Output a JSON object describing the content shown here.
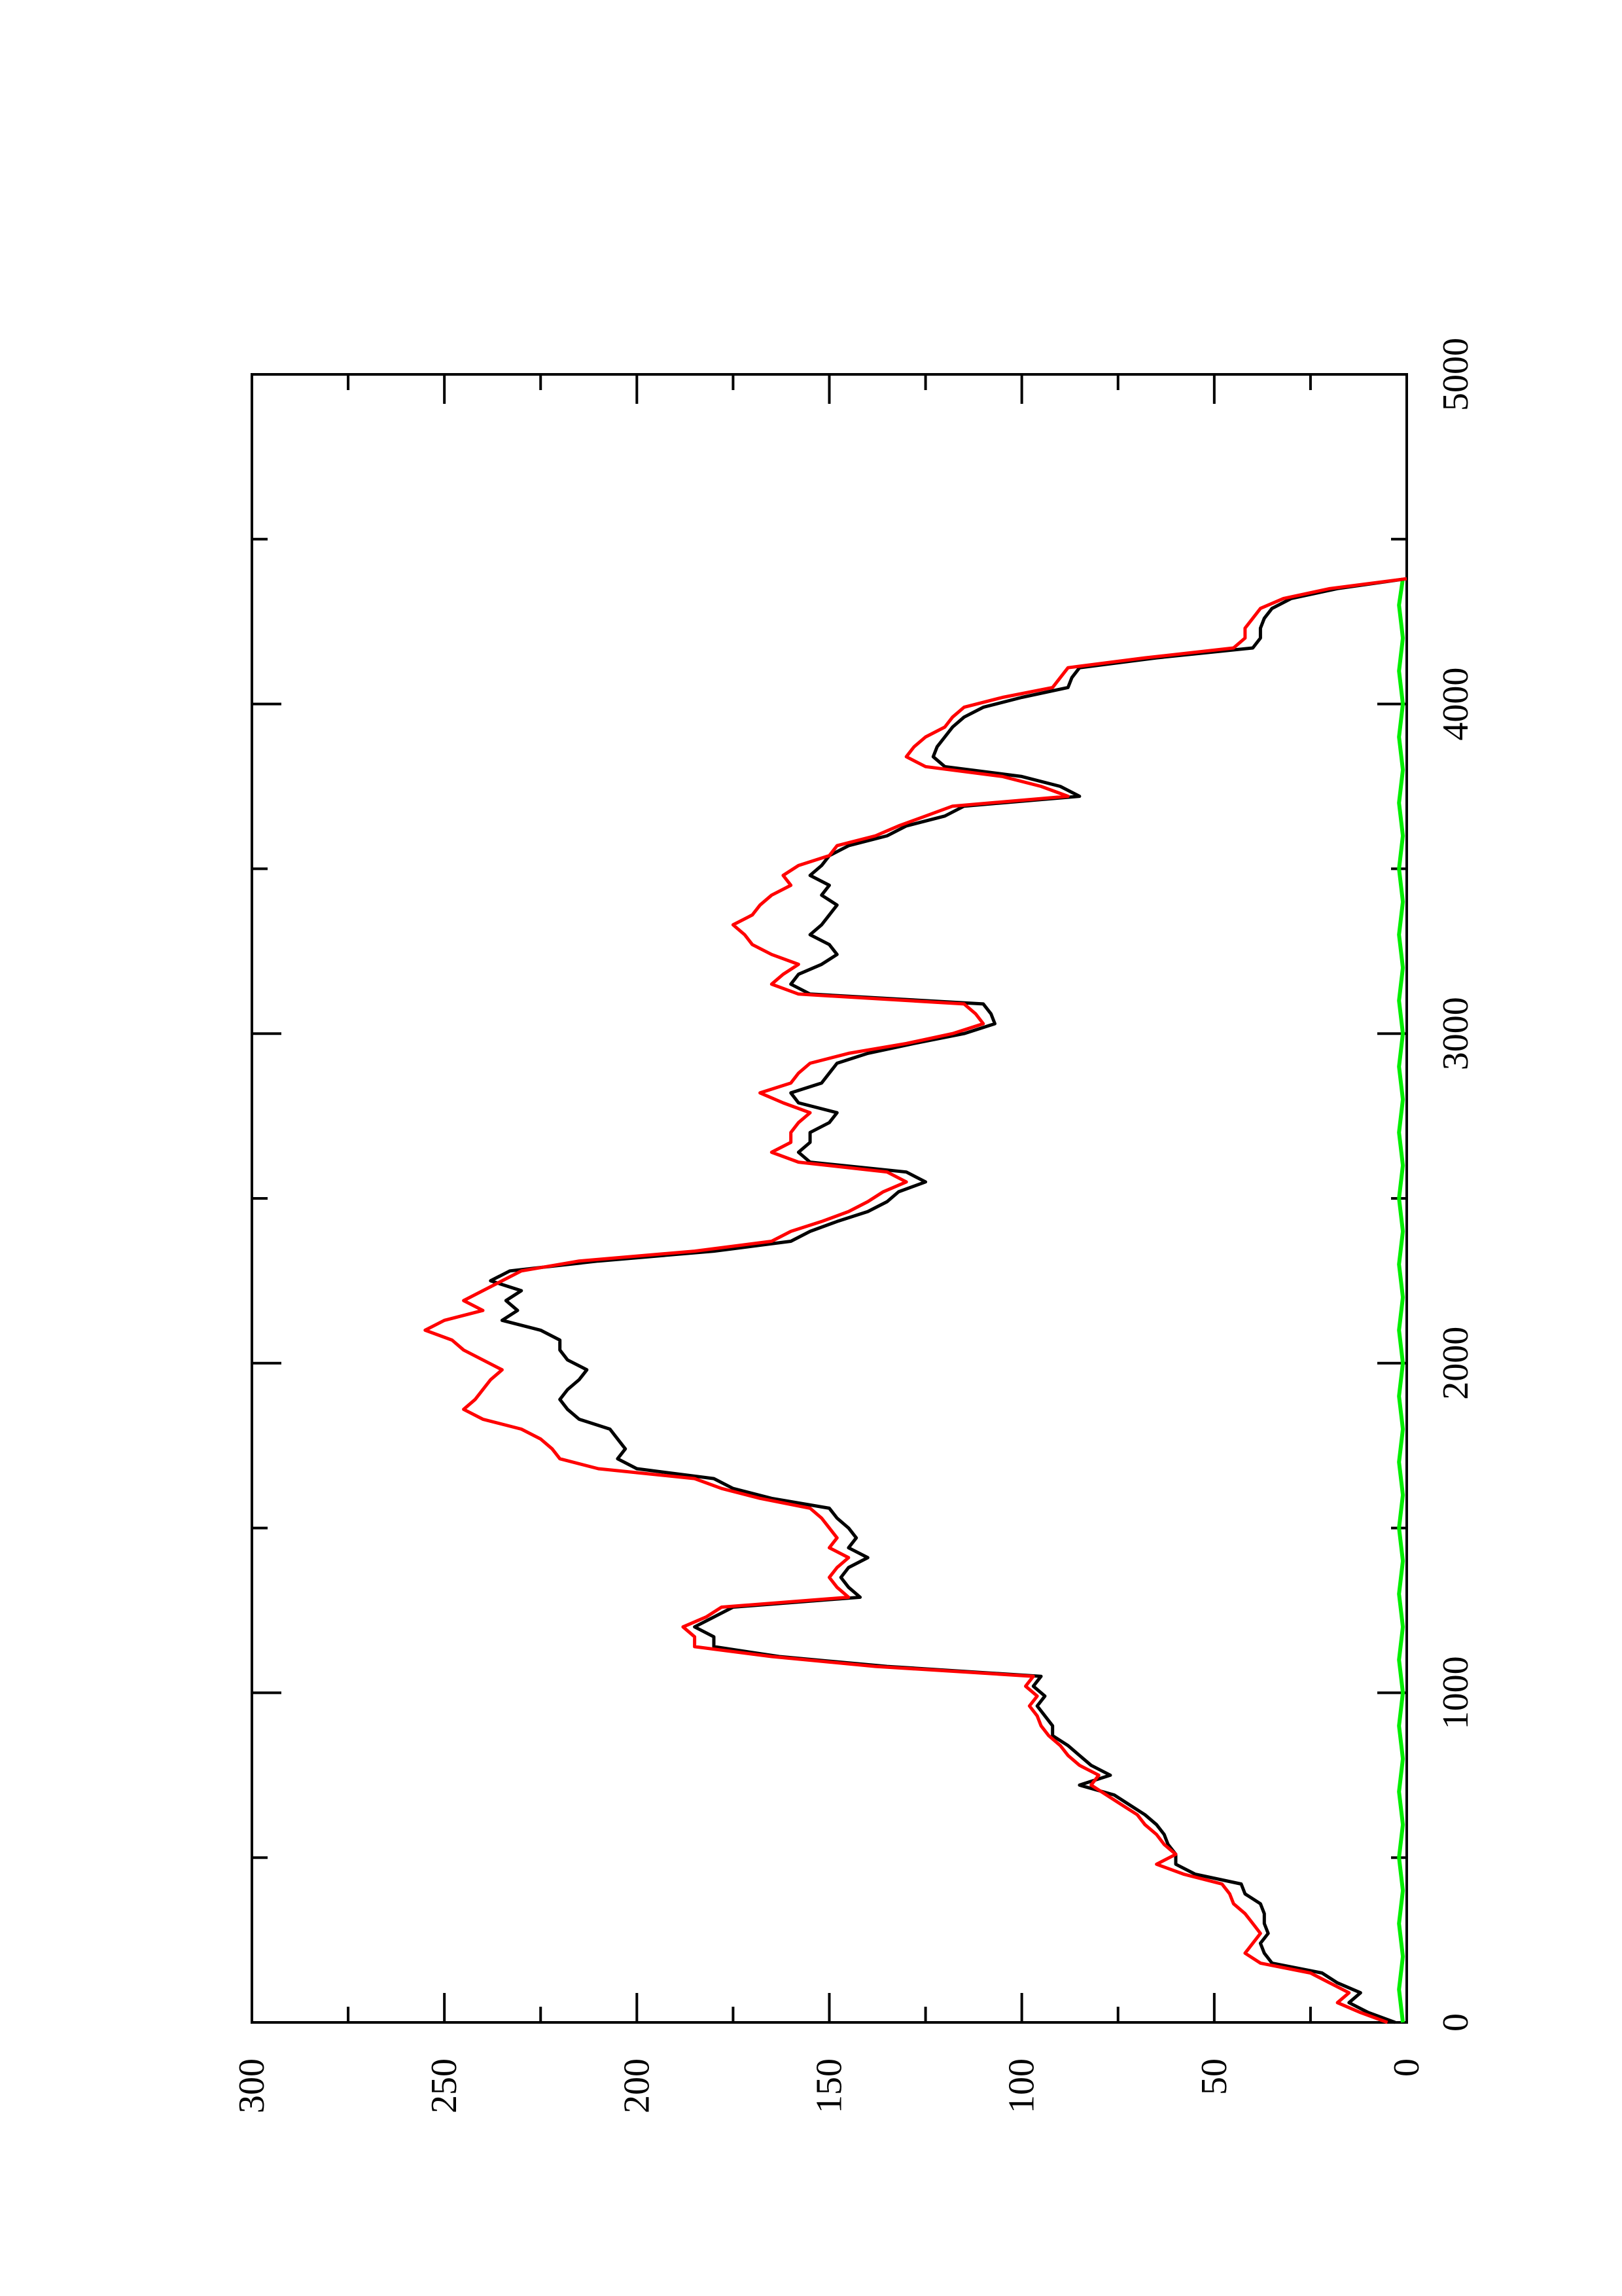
{
  "chart_data": {
    "type": "line",
    "orientation": "rotated-90-ccw",
    "title": "",
    "xlabel": "",
    "ylabel": "",
    "xlim": [
      0,
      5000
    ],
    "ylim": [
      0,
      300
    ],
    "x_ticks": [
      0,
      1000,
      2000,
      3000,
      4000,
      5000
    ],
    "x_minor_ticks": [
      500,
      1500,
      2500,
      3500,
      4500
    ],
    "y_ticks": [
      0,
      50,
      100,
      150,
      200,
      250,
      300
    ],
    "y_minor_ticks": [
      25,
      75,
      125,
      175,
      225,
      275
    ],
    "grid": false,
    "legend": "none",
    "series": [
      {
        "color": "#000000",
        "x": [
          0,
          30,
          60,
          90,
          120,
          150,
          180,
          210,
          240,
          270,
          300,
          330,
          360,
          390,
          420,
          450,
          480,
          510,
          540,
          570,
          600,
          630,
          660,
          690,
          720,
          750,
          780,
          810,
          840,
          870,
          900,
          930,
          960,
          990,
          1020,
          1050,
          1080,
          1110,
          1140,
          1170,
          1200,
          1230,
          1260,
          1290,
          1320,
          1350,
          1380,
          1410,
          1440,
          1470,
          1500,
          1530,
          1560,
          1590,
          1620,
          1650,
          1680,
          1710,
          1740,
          1770,
          1800,
          1830,
          1860,
          1890,
          1920,
          1950,
          1980,
          2010,
          2040,
          2070,
          2100,
          2130,
          2160,
          2190,
          2220,
          2250,
          2280,
          2310,
          2340,
          2370,
          2400,
          2430,
          2460,
          2490,
          2520,
          2550,
          2580,
          2610,
          2640,
          2670,
          2700,
          2730,
          2760,
          2790,
          2820,
          2850,
          2880,
          2910,
          2940,
          2970,
          3000,
          3030,
          3060,
          3090,
          3120,
          3150,
          3180,
          3210,
          3240,
          3270,
          3300,
          3330,
          3360,
          3390,
          3420,
          3450,
          3480,
          3510,
          3540,
          3570,
          3600,
          3630,
          3660,
          3690,
          3720,
          3750,
          3780,
          3810,
          3840,
          3870,
          3900,
          3930,
          3960,
          3990,
          4020,
          4050,
          4080,
          4110,
          4140,
          4170,
          4200,
          4230,
          4260,
          4290,
          4320,
          4350,
          4380
        ],
        "y": [
          3,
          10,
          15,
          12,
          18,
          22,
          35,
          37,
          38,
          36,
          37,
          37,
          38,
          42,
          43,
          55,
          60,
          60,
          62,
          63,
          65,
          68,
          72,
          76,
          85,
          77,
          82,
          85,
          88,
          92,
          92,
          94,
          96,
          94,
          97,
          95,
          135,
          163,
          180,
          180,
          185,
          180,
          175,
          142,
          145,
          147,
          145,
          140,
          145,
          143,
          145,
          148,
          150,
          165,
          175,
          180,
          200,
          205,
          203,
          205,
          207,
          215,
          218,
          220,
          218,
          215,
          213,
          218,
          220,
          220,
          225,
          235,
          231,
          234,
          230,
          238,
          233,
          210,
          180,
          160,
          155,
          148,
          140,
          135,
          132,
          125,
          130,
          155,
          158,
          155,
          155,
          150,
          148,
          158,
          160,
          152,
          150,
          148,
          140,
          128,
          115,
          107,
          108,
          110,
          155,
          160,
          158,
          152,
          148,
          150,
          155,
          152,
          150,
          148,
          152,
          150,
          155,
          152,
          150,
          145,
          135,
          130,
          120,
          115,
          85,
          90,
          100,
          120,
          123,
          122,
          120,
          118,
          115,
          110,
          100,
          88,
          87,
          85,
          65,
          40,
          38,
          38,
          37,
          35,
          30,
          18,
          0
        ]
      },
      {
        "color": "#ff0000",
        "x": [
          0,
          30,
          60,
          90,
          120,
          150,
          180,
          210,
          240,
          270,
          300,
          330,
          360,
          390,
          420,
          450,
          480,
          510,
          540,
          570,
          600,
          630,
          660,
          690,
          720,
          750,
          780,
          810,
          840,
          870,
          900,
          930,
          960,
          990,
          1020,
          1050,
          1080,
          1110,
          1140,
          1170,
          1200,
          1230,
          1260,
          1290,
          1320,
          1350,
          1380,
          1410,
          1440,
          1470,
          1500,
          1530,
          1560,
          1590,
          1620,
          1650,
          1680,
          1710,
          1740,
          1770,
          1800,
          1830,
          1860,
          1890,
          1920,
          1950,
          1980,
          2010,
          2040,
          2070,
          2100,
          2130,
          2160,
          2190,
          2220,
          2250,
          2280,
          2310,
          2340,
          2370,
          2400,
          2430,
          2460,
          2490,
          2520,
          2550,
          2580,
          2610,
          2640,
          2670,
          2700,
          2730,
          2760,
          2790,
          2820,
          2850,
          2880,
          2910,
          2940,
          2970,
          3000,
          3030,
          3060,
          3090,
          3120,
          3150,
          3180,
          3210,
          3240,
          3270,
          3300,
          3330,
          3360,
          3390,
          3420,
          3450,
          3480,
          3510,
          3540,
          3570,
          3600,
          3630,
          3660,
          3690,
          3720,
          3750,
          3780,
          3810,
          3840,
          3870,
          3900,
          3930,
          3960,
          3990,
          4020,
          4050,
          4080,
          4110,
          4140,
          4170,
          4200,
          4230,
          4260,
          4290,
          4320,
          4350,
          4380
        ],
        "y": [
          5,
          12,
          18,
          15,
          20,
          25,
          38,
          42,
          40,
          38,
          40,
          42,
          45,
          46,
          48,
          58,
          65,
          60,
          63,
          65,
          68,
          70,
          74,
          78,
          82,
          80,
          85,
          88,
          90,
          93,
          95,
          96,
          98,
          96,
          99,
          97,
          138,
          165,
          185,
          185,
          188,
          182,
          178,
          145,
          148,
          150,
          148,
          145,
          150,
          148,
          150,
          152,
          155,
          168,
          178,
          185,
          210,
          220,
          222,
          225,
          230,
          240,
          245,
          242,
          240,
          238,
          235,
          240,
          245,
          248,
          255,
          250,
          240,
          245,
          240,
          235,
          230,
          215,
          185,
          165,
          160,
          152,
          145,
          140,
          136,
          130,
          135,
          158,
          165,
          160,
          160,
          158,
          155,
          162,
          168,
          160,
          158,
          155,
          145,
          130,
          118,
          110,
          112,
          115,
          158,
          165,
          162,
          158,
          165,
          170,
          172,
          175,
          170,
          168,
          165,
          160,
          162,
          158,
          150,
          148,
          138,
          132,
          125,
          118,
          88,
          95,
          105,
          125,
          130,
          128,
          125,
          120,
          118,
          115,
          105,
          92,
          90,
          88,
          68,
          45,
          42,
          42,
          40,
          38,
          32,
          20,
          0
        ]
      },
      {
        "color": "#00ee00",
        "x": [
          0,
          100,
          200,
          300,
          400,
          500,
          600,
          700,
          800,
          900,
          1000,
          1100,
          1200,
          1300,
          1400,
          1500,
          1600,
          1700,
          1800,
          1900,
          2000,
          2100,
          2200,
          2300,
          2400,
          2500,
          2600,
          2700,
          2800,
          2900,
          3000,
          3100,
          3200,
          3300,
          3400,
          3500,
          3600,
          3700,
          3800,
          3900,
          4000,
          4100,
          4200,
          4300,
          4380
        ],
        "y": [
          1,
          2,
          1,
          2,
          1,
          2,
          1,
          2,
          1,
          2,
          1,
          2,
          1,
          2,
          1,
          2,
          1,
          2,
          1,
          2,
          1,
          2,
          1,
          2,
          1,
          2,
          1,
          2,
          1,
          2,
          1,
          2,
          1,
          2,
          1,
          2,
          1,
          2,
          1,
          2,
          1,
          2,
          1,
          2,
          1
        ]
      }
    ]
  }
}
